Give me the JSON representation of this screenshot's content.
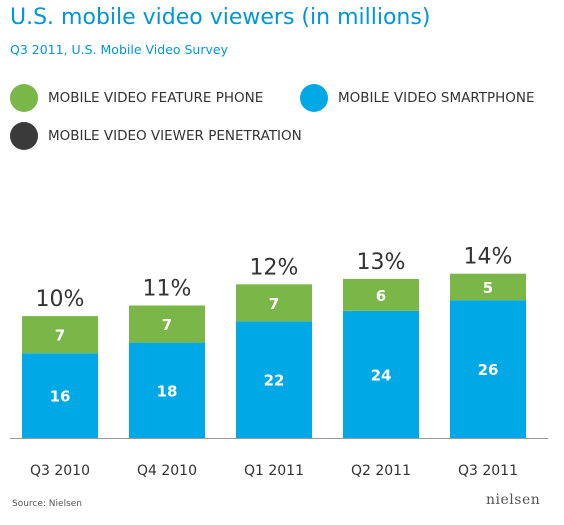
{
  "title": "U.S. mobile video viewers (in millions)",
  "subtitle": "Q3 2011, U.S. Mobile Video Survey",
  "legend": [
    {
      "label": "MOBILE VIDEO FEATURE PHONE",
      "color": "#7ab648"
    },
    {
      "label": "MOBILE VIDEO SMARTPHONE",
      "color": "#00a9e6"
    },
    {
      "label": "MOBILE VIDEO VIEWER PENETRATION",
      "color": "#3a3a3a"
    }
  ],
  "source": "Source: Nielsen",
  "logo": "nielsen",
  "chart_data": {
    "type": "bar",
    "stacked": true,
    "categories": [
      "Q3 2010",
      "Q4 2010",
      "Q1 2011",
      "Q2 2011",
      "Q3 2011"
    ],
    "series": [
      {
        "name": "MOBILE VIDEO SMARTPHONE",
        "values": [
          16,
          18,
          22,
          24,
          26
        ],
        "color": "#00a9e6"
      },
      {
        "name": "MOBILE VIDEO FEATURE PHONE",
        "values": [
          7,
          7,
          7,
          6,
          5
        ],
        "color": "#7ab648"
      }
    ],
    "penetration_labels": [
      "10%",
      "11%",
      "12%",
      "13%",
      "14%"
    ],
    "ylim": [
      0,
      34
    ],
    "grid": false
  }
}
